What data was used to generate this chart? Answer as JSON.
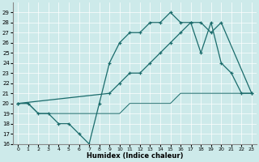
{
  "xlabel": "Humidex (Indice chaleur)",
  "bg_color": "#cdeaea",
  "line_color": "#1a6b6b",
  "ylim": [
    16,
    30
  ],
  "xlim": [
    -0.5,
    23.5
  ],
  "yticks": [
    16,
    17,
    18,
    19,
    20,
    21,
    22,
    23,
    24,
    25,
    26,
    27,
    28,
    29
  ],
  "xticks": [
    0,
    1,
    2,
    3,
    4,
    5,
    6,
    7,
    8,
    9,
    10,
    11,
    12,
    13,
    14,
    15,
    16,
    17,
    18,
    19,
    20,
    21,
    22,
    23
  ],
  "line1_x": [
    0,
    1,
    2,
    3,
    4,
    5,
    6,
    7,
    8,
    9,
    10,
    11,
    12,
    13,
    14,
    15,
    16,
    17,
    18,
    19,
    20,
    21,
    22,
    23
  ],
  "line1_y": [
    20,
    20,
    19,
    19,
    18,
    18,
    17,
    16,
    20,
    24,
    26,
    27,
    27,
    28,
    28,
    29,
    28,
    28,
    25,
    28,
    24,
    23,
    21,
    21
  ],
  "line2_x": [
    0,
    9,
    10,
    11,
    12,
    13,
    14,
    15,
    16,
    17,
    18,
    19,
    20,
    23
  ],
  "line2_y": [
    20,
    21,
    22,
    23,
    23,
    24,
    25,
    26,
    27,
    28,
    28,
    27,
    28,
    21
  ],
  "line3_x": [
    0,
    1,
    2,
    3,
    4,
    5,
    6,
    7,
    8,
    9,
    10,
    11,
    12,
    13,
    14,
    15,
    16,
    17,
    18,
    19,
    20,
    21,
    22,
    23
  ],
  "line3_y": [
    20,
    20,
    19,
    19,
    19,
    19,
    19,
    19,
    19,
    19,
    19,
    20,
    20,
    20,
    20,
    20,
    21,
    21,
    21,
    21,
    21,
    21,
    21,
    21
  ]
}
